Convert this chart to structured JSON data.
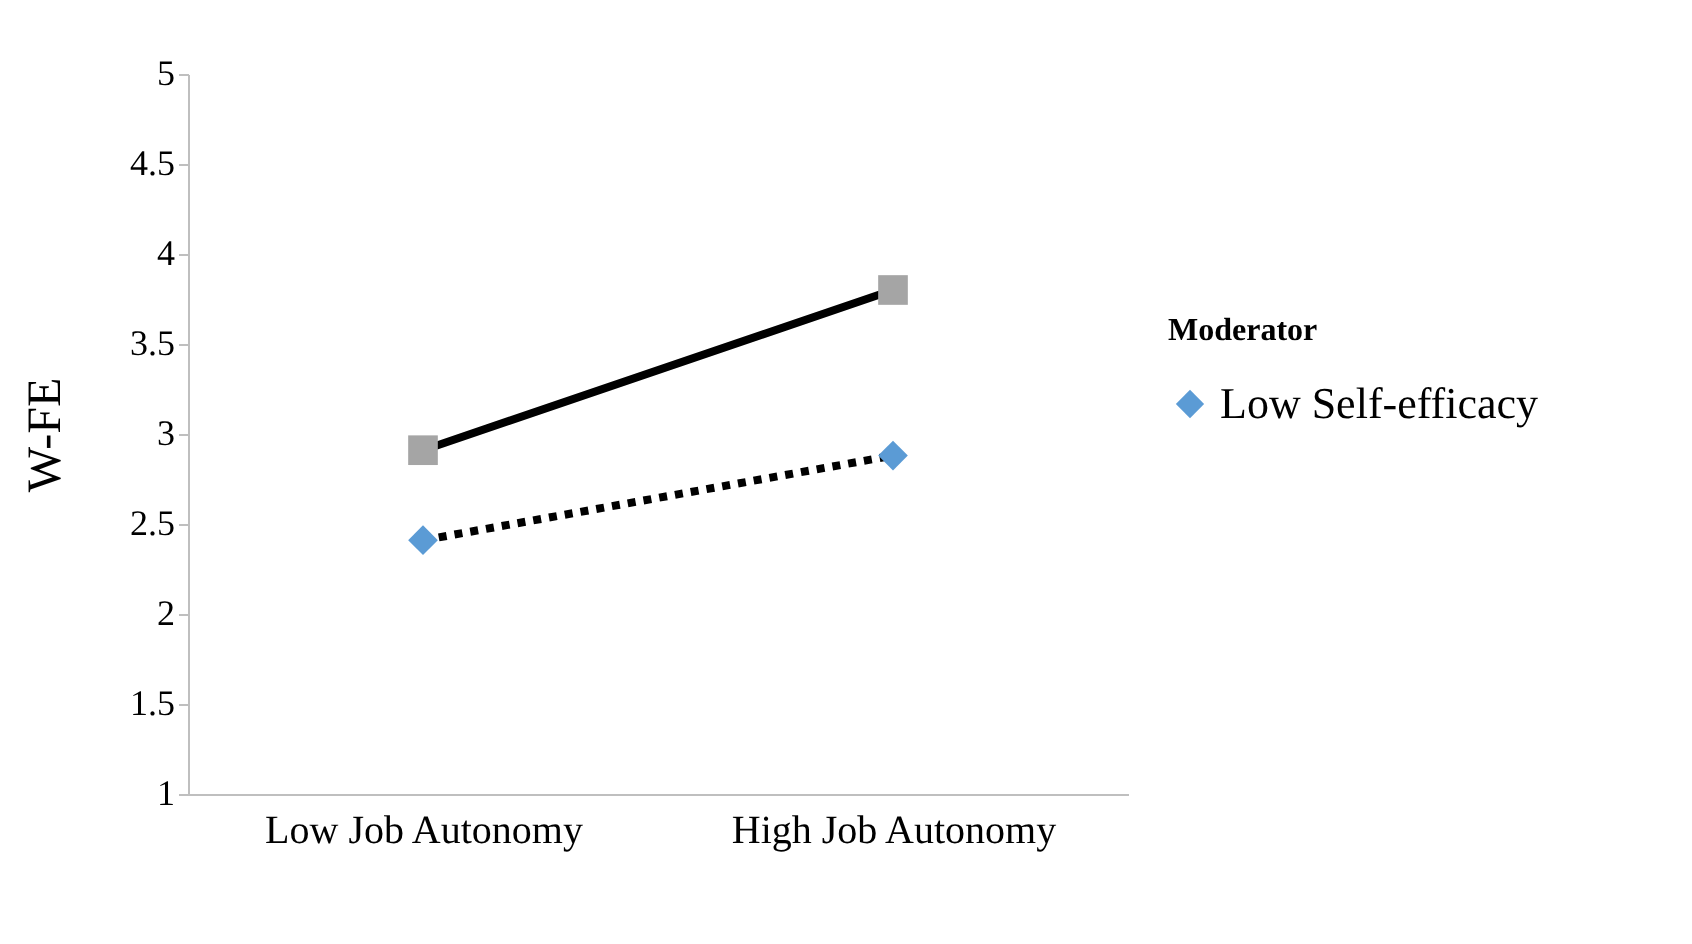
{
  "chart_data": {
    "type": "line",
    "ylabel": "W-FE",
    "legend_title": "Moderator",
    "categories": [
      "Low Job Autonomy",
      "High Job Autonomy"
    ],
    "series": [
      {
        "color": "#a5a5a5",
        "marker": "square",
        "line_style": "solid",
        "values": [
          2.91,
          3.8
        ]
      },
      {
        "name": "Low Self-efficacy",
        "color": "#5b9bd5",
        "marker": "diamond",
        "line_style": "dotted",
        "values": [
          2.41,
          2.88
        ]
      }
    ],
    "ylim": [
      1,
      5
    ],
    "yticks": [
      1,
      1.5,
      2,
      2.5,
      3,
      3.5,
      4,
      4.5,
      5
    ],
    "grid": false,
    "legend": "right"
  }
}
